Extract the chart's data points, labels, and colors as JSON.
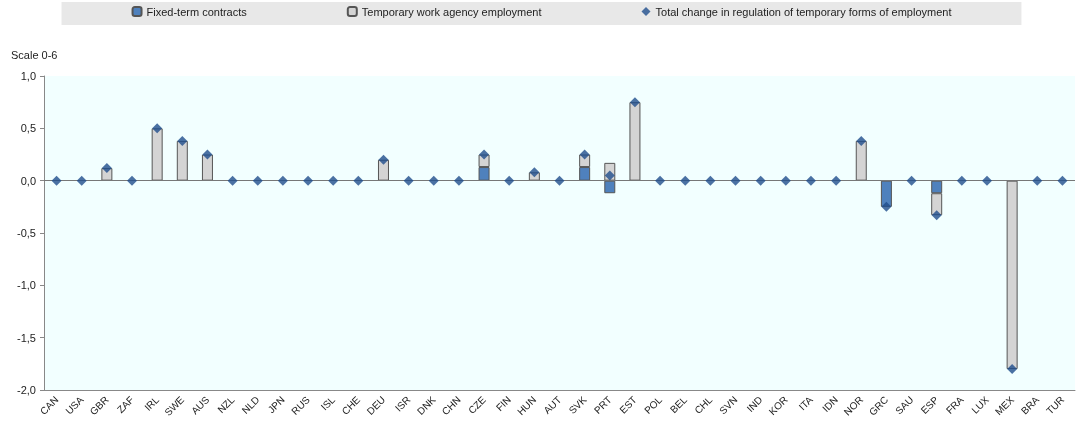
{
  "chart_data": {
    "type": "bar",
    "stacked": true,
    "ylabel": "Scale 0-6",
    "categories": [
      "CAN",
      "USA",
      "GBR",
      "ZAF",
      "IRL",
      "SWE",
      "AUS",
      "NZL",
      "NLD",
      "JPN",
      "RUS",
      "ISL",
      "CHE",
      "DEU",
      "ISR",
      "DNK",
      "CHN",
      "CZE",
      "FIN",
      "HUN",
      "AUT",
      "SVK",
      "PRT",
      "EST",
      "POL",
      "BEL",
      "CHL",
      "SVN",
      "IND",
      "KOR",
      "ITA",
      "IDN",
      "NOR",
      "GRC",
      "SAU",
      "ESP",
      "FRA",
      "LUX",
      "MEX",
      "BRA",
      "TUR"
    ],
    "series": [
      {
        "name": "Fixed-term contracts",
        "color": "#4f81bd",
        "values": [
          0,
          0,
          0,
          0,
          0,
          0,
          0,
          0,
          0,
          0,
          0,
          0,
          0,
          0,
          0,
          0,
          0,
          0.13,
          0,
          0,
          0,
          0.13,
          -0.12,
          0,
          0,
          0,
          0,
          0,
          0,
          0,
          0,
          0,
          0,
          -0.25,
          0,
          -0.12,
          0,
          0,
          0,
          0,
          0
        ]
      },
      {
        "name": "Temporary work agency employment",
        "color": "#d4d4d4",
        "values": [
          0,
          0,
          0.12,
          0,
          0.5,
          0.38,
          0.25,
          0,
          0,
          0,
          0,
          0,
          0,
          0.2,
          0,
          0,
          0,
          0.12,
          0,
          0.08,
          0,
          0.12,
          0.17,
          0.75,
          0,
          0,
          0,
          0,
          0,
          0,
          0,
          0,
          0.38,
          0,
          0,
          -0.21,
          0,
          0,
          -1.8,
          0,
          0
        ]
      },
      {
        "name": "Total change in regulation of temporary forms of employment",
        "type": "scatter",
        "color": "#1f4e8c",
        "values": [
          0,
          0,
          0.12,
          0,
          0.5,
          0.38,
          0.25,
          0,
          0,
          0,
          0,
          0,
          0,
          0.2,
          0,
          0,
          0,
          0.25,
          0,
          0.08,
          0,
          0.25,
          0.05,
          0.75,
          0,
          0,
          0,
          0,
          0,
          0,
          0,
          0,
          0.38,
          -0.25,
          0,
          -0.33,
          0,
          0,
          -1.8,
          0,
          0
        ]
      }
    ],
    "marker": "diamond",
    "ylim": [
      -2,
      1
    ],
    "yticks": [
      {
        "value": -2,
        "label": "-2,0"
      },
      {
        "value": -1.5,
        "label": "-1,5"
      },
      {
        "value": -1,
        "label": "-1,0"
      },
      {
        "value": -0.5,
        "label": "-0,5"
      },
      {
        "value": 0,
        "label": "0,0"
      },
      {
        "value": 0.5,
        "label": "0,5"
      },
      {
        "value": 1,
        "label": "1,0"
      }
    ],
    "ref_lines": [
      {
        "axis": "y",
        "value": 0,
        "color": "#777777"
      }
    ],
    "legend": "top"
  }
}
